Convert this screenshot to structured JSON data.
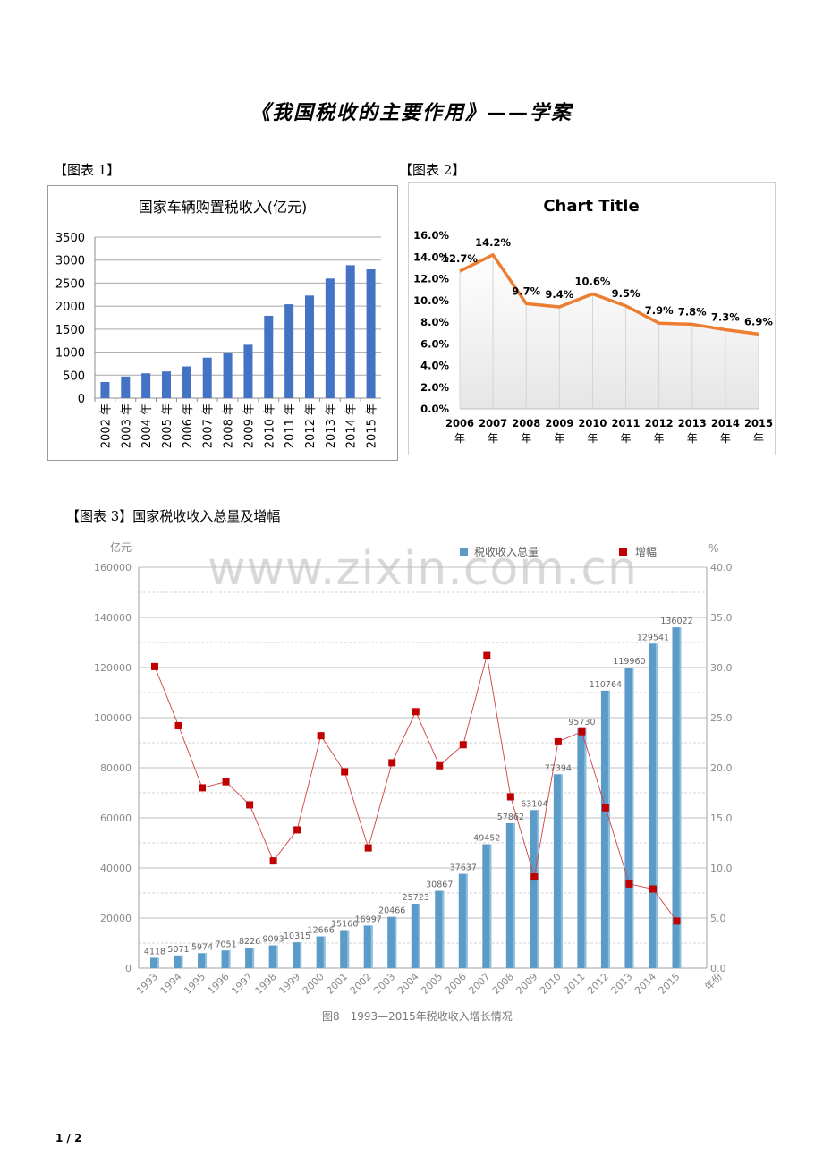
{
  "title": "《我国税收的主要作用》——学案",
  "labels": {
    "chart1": "【图表 1】",
    "chart2": "【图表 2】",
    "chart3": "【图表 3】国家税收收入总量及增幅"
  },
  "watermark": "www.zixin.com.cn",
  "page_number": "1 / 2",
  "chart_data": [
    {
      "type": "bar",
      "title": "国家车辆购置税收入(亿元)",
      "categories": [
        "2002 年",
        "2003 年",
        "2004 年",
        "2005 年",
        "2006 年",
        "2007 年",
        "2008 年",
        "2009 年",
        "2010 年",
        "2011 年",
        "2012 年",
        "2013 年",
        "2014 年",
        "2015 年"
      ],
      "values": [
        350,
        470,
        540,
        580,
        690,
        880,
        990,
        1160,
        1790,
        2040,
        2230,
        2600,
        2890,
        2800
      ],
      "ylim": [
        0,
        3500
      ],
      "yticks": [
        "0",
        "500",
        "1000",
        "1500",
        "2000",
        "2500",
        "3000",
        "3500"
      ],
      "color": "#4472c4",
      "grid": true
    },
    {
      "type": "line",
      "title": "Chart Title",
      "categories": [
        "2006 年",
        "2007 年",
        "2008 年",
        "2009 年",
        "2010 年",
        "2011 年",
        "2012 年",
        "2013 年",
        "2014 年",
        "2015 年"
      ],
      "values": [
        12.7,
        14.2,
        9.7,
        9.4,
        10.6,
        9.5,
        7.9,
        7.8,
        7.3,
        6.9
      ],
      "data_labels": [
        "12.7%",
        "14.2%",
        "9.7%",
        "9.4%",
        "10.6%",
        "9.5%",
        "7.9%",
        "7.8%",
        "7.3%",
        "6.9%"
      ],
      "ylim": [
        0,
        16
      ],
      "yticks": [
        "0.0%",
        "2.0%",
        "4.0%",
        "6.0%",
        "8.0%",
        "10.0%",
        "12.0%",
        "14.0%",
        "16.0%"
      ],
      "color": "#ed7d31"
    },
    {
      "type": "bar",
      "title": "",
      "xlabel": "年份",
      "ylabel": "亿元",
      "y2label": "%",
      "caption": "图8　1993—2015年税收收入增长情况",
      "categories": [
        "1993",
        "1994",
        "1995",
        "1996",
        "1997",
        "1998",
        "1999",
        "2000",
        "2001",
        "2002",
        "2003",
        "2004",
        "2005",
        "2006",
        "2007",
        "2008",
        "2009",
        "2010",
        "2011",
        "2012",
        "2013",
        "2014",
        "2015"
      ],
      "series": [
        {
          "name": "税收收入总量",
          "type": "bar",
          "axis": "left",
          "color": "#5b9bc8",
          "values": [
            4118,
            5071,
            5974,
            7051,
            8226,
            9093,
            10315,
            12666,
            15166,
            16997,
            20466,
            25723,
            30867,
            37637,
            49452,
            57862,
            63104,
            77394,
            95730,
            110764,
            119960,
            129541,
            136022
          ]
        },
        {
          "name": "增幅",
          "type": "line",
          "axis": "right",
          "color": "#c00000",
          "values": [
            30.1,
            24.2,
            18.0,
            18.6,
            16.3,
            10.7,
            13.8,
            23.2,
            19.6,
            12.0,
            20.5,
            25.6,
            20.2,
            22.3,
            31.2,
            17.1,
            9.1,
            22.6,
            23.6,
            16.0,
            8.4,
            7.9,
            4.7
          ]
        }
      ],
      "ylim": [
        0,
        160000
      ],
      "yticks": [
        "0",
        "20000",
        "40000",
        "60000",
        "80000",
        "100000",
        "120000",
        "140000",
        "160000"
      ],
      "y2lim": [
        0,
        40
      ],
      "y2ticks": [
        "0.0",
        "5.0",
        "10.0",
        "15.0",
        "20.0",
        "25.0",
        "30.0",
        "35.0",
        "40.0"
      ]
    }
  ]
}
